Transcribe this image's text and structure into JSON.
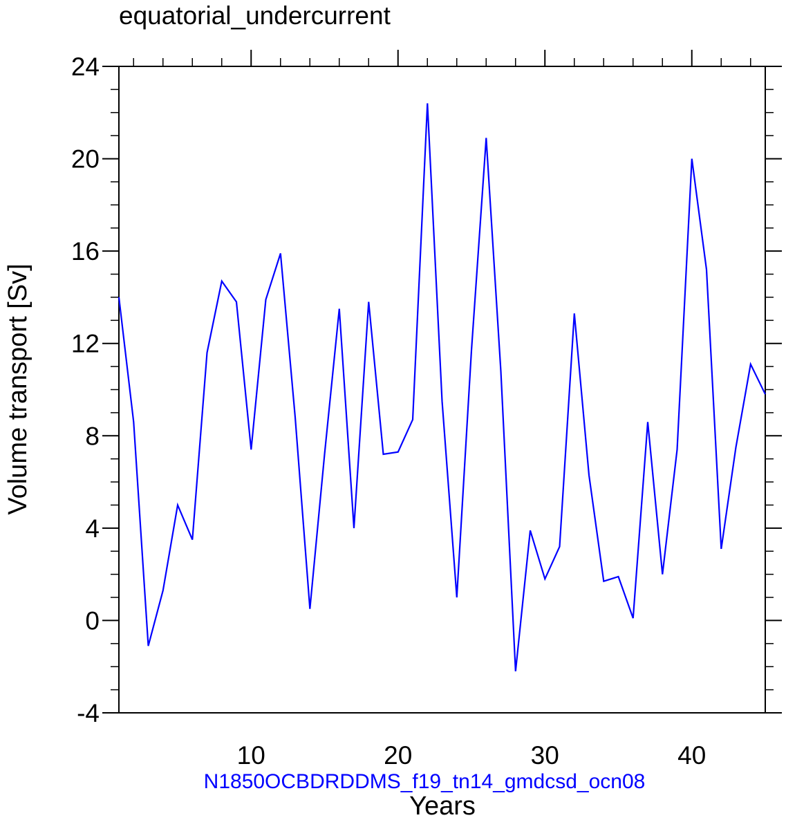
{
  "chart_data": {
    "type": "line",
    "title": "equatorial_undercurrent",
    "xlabel": "Years",
    "ylabel": "Volume transport [Sv]",
    "subtitle": "N1850OCBDRDDMS_f19_tn14_gmdcsd_ocn08",
    "xlim": [
      1,
      45
    ],
    "ylim": [
      -4,
      24
    ],
    "x_ticks": [
      10,
      20,
      30,
      40
    ],
    "x_tick_labels": [
      "10",
      "20",
      "30",
      "40"
    ],
    "y_ticks": [
      -4,
      0,
      4,
      8,
      12,
      16,
      20,
      24
    ],
    "y_tick_labels": [
      "-4",
      "0",
      "4",
      "8",
      "12",
      "16",
      "20",
      "24"
    ],
    "series": [
      {
        "name": "equatorial_undercurrent",
        "color": "#0000ff",
        "x": [
          1,
          2,
          3,
          4,
          5,
          6,
          7,
          8,
          9,
          10,
          11,
          12,
          13,
          14,
          15,
          16,
          17,
          18,
          19,
          20,
          21,
          22,
          23,
          24,
          25,
          26,
          27,
          28,
          29,
          30,
          31,
          32,
          33,
          34,
          35,
          36,
          37,
          38,
          39,
          40,
          41,
          42,
          43,
          44,
          45
        ],
        "values": [
          14.0,
          8.6,
          -1.1,
          1.3,
          5.0,
          3.5,
          11.6,
          14.7,
          13.8,
          7.4,
          13.9,
          15.9,
          8.8,
          0.5,
          7.2,
          13.5,
          4.0,
          13.8,
          7.2,
          7.3,
          8.7,
          22.4,
          9.5,
          1.0,
          11.7,
          20.9,
          10.8,
          -2.2,
          3.9,
          1.8,
          3.2,
          13.3,
          6.3,
          1.7,
          1.9,
          0.1,
          8.6,
          2.0,
          7.4,
          20.0,
          15.2,
          3.1,
          7.5,
          11.1,
          9.8
        ]
      }
    ],
    "subtitle_color": "#0000ff",
    "grid": false
  }
}
